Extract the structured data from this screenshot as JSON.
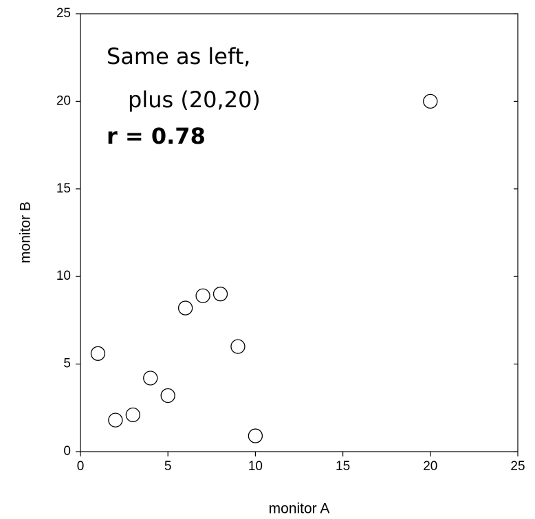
{
  "chart_data": {
    "type": "scatter",
    "x_label": "monitor A",
    "y_label": "monitor B",
    "annotations": [
      "Same as left,",
      "plus (20,20)",
      "r = 0.78"
    ],
    "x": [
      1,
      2,
      3,
      4,
      5,
      6,
      7,
      8,
      9,
      10,
      20
    ],
    "series": [
      {
        "name": null,
        "color": "#000000",
        "values": [
          5.6,
          1.8,
          2.1,
          4.2,
          3.2,
          8.2,
          8.9,
          9.0,
          6.0,
          0.9,
          20
        ]
      }
    ],
    "xlim": [
      0,
      25
    ],
    "ylim": [
      0,
      25
    ],
    "xticks": [
      0,
      5,
      10,
      15,
      20,
      25
    ],
    "yticks": [
      0,
      5,
      10,
      15,
      20,
      25
    ],
    "grid": false
  }
}
